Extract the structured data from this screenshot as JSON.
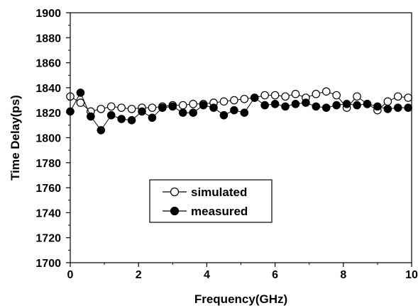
{
  "chart_data": {
    "type": "line",
    "title": "",
    "xlabel": "Frequency(GHz)",
    "ylabel": "Time Delay(ps)",
    "xlim": [
      0,
      10
    ],
    "ylim": [
      1700,
      1900
    ],
    "x_ticks": [
      "0",
      "2",
      "4",
      "6",
      "8",
      "10"
    ],
    "y_ticks": [
      "1700",
      "1720",
      "1740",
      "1760",
      "1780",
      "1800",
      "1820",
      "1840",
      "1860",
      "1880",
      "1900"
    ],
    "grid": false,
    "legend_position": "lower-left inside",
    "series": [
      {
        "name": "simulated",
        "marker": "open-circle",
        "color": "#000000",
        "x": [
          0.0,
          0.3,
          0.6,
          0.9,
          1.2,
          1.5,
          1.8,
          2.1,
          2.4,
          2.7,
          3.0,
          3.3,
          3.6,
          3.9,
          4.2,
          4.5,
          4.8,
          5.1,
          5.4,
          5.7,
          6.0,
          6.3,
          6.6,
          6.9,
          7.2,
          7.5,
          7.8,
          8.1,
          8.4,
          8.7,
          9.0,
          9.3,
          9.6,
          9.9
        ],
        "y": [
          1833,
          1828,
          1821,
          1823,
          1825,
          1824,
          1823,
          1824,
          1824,
          1825,
          1826,
          1826,
          1827,
          1827,
          1828,
          1829,
          1830,
          1831,
          1832,
          1834,
          1834,
          1833,
          1835,
          1832,
          1835,
          1837,
          1834,
          1824,
          1833,
          1827,
          1822,
          1829,
          1833,
          1832
        ]
      },
      {
        "name": "measured",
        "marker": "filled-circle",
        "color": "#000000",
        "x": [
          0.0,
          0.3,
          0.6,
          0.9,
          1.2,
          1.5,
          1.8,
          2.1,
          2.4,
          2.7,
          3.0,
          3.3,
          3.6,
          3.9,
          4.2,
          4.5,
          4.8,
          5.1,
          5.4,
          5.7,
          6.0,
          6.3,
          6.6,
          6.9,
          7.2,
          7.5,
          7.8,
          8.1,
          8.4,
          8.7,
          9.0,
          9.3,
          9.6,
          9.9
        ],
        "y": [
          1821,
          1836,
          1817,
          1806,
          1818,
          1815,
          1814,
          1821,
          1816,
          1824,
          1825,
          1820,
          1820,
          1826,
          1824,
          1818,
          1822,
          1820,
          1832,
          1826,
          1827,
          1825,
          1827,
          1828,
          1825,
          1824,
          1826,
          1827,
          1826,
          1827,
          1825,
          1823,
          1824,
          1824
        ]
      }
    ]
  }
}
